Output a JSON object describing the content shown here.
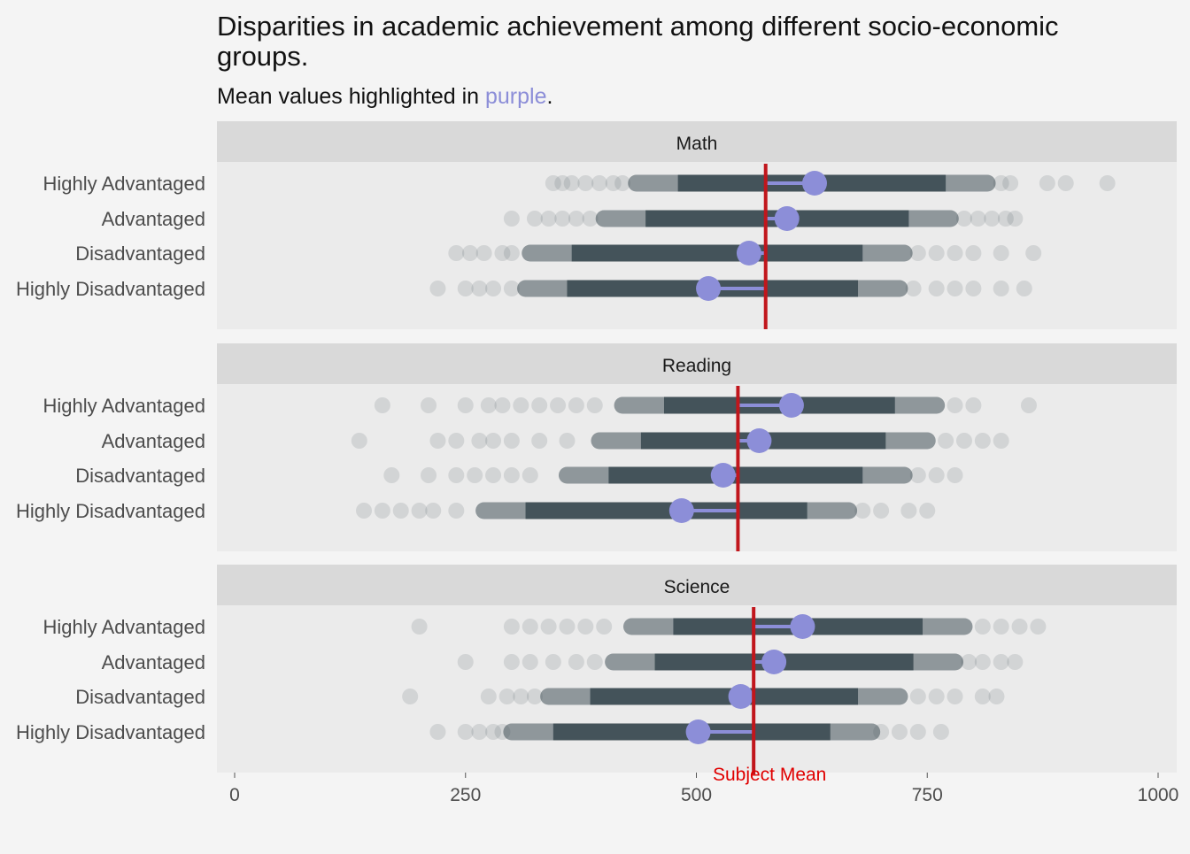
{
  "chart_data": {
    "type": "scatter",
    "title": "Disparities in academic achievement among different socio-economic groups.",
    "subtitle_prefix": "Mean values highlighted in ",
    "subtitle_highlight": "purple",
    "subtitle_suffix": ".",
    "categories": [
      "Highly Advantaged",
      "Advantaged",
      "Disadvantaged",
      "Highly Disadvantaged"
    ],
    "x_ticks": [
      0,
      250,
      500,
      750,
      1000
    ],
    "xlim": [
      0,
      1000
    ],
    "xlabel": "",
    "ylabel": "",
    "mean_line_label": "Subject Mean",
    "colors": {
      "background": "#f4f4f4",
      "panel": "#ebebeb",
      "strip": "#d9d9d9",
      "points": "#44535a",
      "mean": "#8c8ed8",
      "subject_mean_line": "#c1161c",
      "annotation": "#e00000"
    },
    "panels": [
      {
        "name": "Math",
        "subject_mean": 575,
        "groups": [
          {
            "label": "Highly Advantaged",
            "mean": 628,
            "core_range": [
              435,
              815
            ],
            "outliers": [
              345,
              355,
              365,
              380,
              395,
              410,
              420,
              830,
              840,
              880,
              900,
              945
            ]
          },
          {
            "label": "Advantaged",
            "mean": 598,
            "core_range": [
              400,
              775
            ],
            "outliers": [
              300,
              325,
              340,
              355,
              370,
              385,
              790,
              805,
              820,
              835,
              845
            ]
          },
          {
            "label": "Disadvantaged",
            "mean": 557,
            "core_range": [
              320,
              725
            ],
            "outliers": [
              240,
              255,
              270,
              290,
              300,
              740,
              760,
              780,
              800,
              830,
              865
            ]
          },
          {
            "label": "Highly Disadvantaged",
            "mean": 513,
            "core_range": [
              315,
              720
            ],
            "outliers": [
              220,
              250,
              265,
              280,
              300,
              735,
              760,
              780,
              800,
              830,
              855
            ]
          }
        ]
      },
      {
        "name": "Reading",
        "subject_mean": 545,
        "groups": [
          {
            "label": "Highly Advantaged",
            "mean": 603,
            "core_range": [
              420,
              760
            ],
            "outliers": [
              160,
              210,
              250,
              275,
              290,
              310,
              330,
              350,
              370,
              390,
              780,
              800,
              860
            ]
          },
          {
            "label": "Advantaged",
            "mean": 568,
            "core_range": [
              395,
              750
            ],
            "outliers": [
              135,
              220,
              240,
              265,
              280,
              300,
              330,
              360,
              770,
              790,
              810,
              830
            ]
          },
          {
            "label": "Disadvantaged",
            "mean": 529,
            "core_range": [
              360,
              725
            ],
            "outliers": [
              170,
              210,
              240,
              260,
              280,
              300,
              320,
              740,
              760,
              780
            ]
          },
          {
            "label": "Highly Disadvantaged",
            "mean": 484,
            "core_range": [
              270,
              665
            ],
            "outliers": [
              140,
              160,
              180,
              200,
              215,
              240,
              680,
              700,
              730,
              750
            ]
          }
        ]
      },
      {
        "name": "Science",
        "subject_mean": 562,
        "groups": [
          {
            "label": "Highly Advantaged",
            "mean": 615,
            "core_range": [
              430,
              790
            ],
            "outliers": [
              200,
              300,
              320,
              340,
              360,
              380,
              400,
              810,
              830,
              850,
              870
            ]
          },
          {
            "label": "Advantaged",
            "mean": 584,
            "core_range": [
              410,
              780
            ],
            "outliers": [
              250,
              300,
              320,
              345,
              370,
              390,
              795,
              810,
              830,
              845
            ]
          },
          {
            "label": "Disadvantaged",
            "mean": 548,
            "core_range": [
              340,
              720
            ],
            "outliers": [
              190,
              275,
              295,
              310,
              325,
              740,
              760,
              780,
              810,
              825
            ]
          },
          {
            "label": "Highly Disadvantaged",
            "mean": 502,
            "core_range": [
              300,
              690
            ],
            "outliers": [
              220,
              250,
              265,
              280,
              290,
              700,
              720,
              740,
              765
            ]
          }
        ]
      }
    ]
  }
}
